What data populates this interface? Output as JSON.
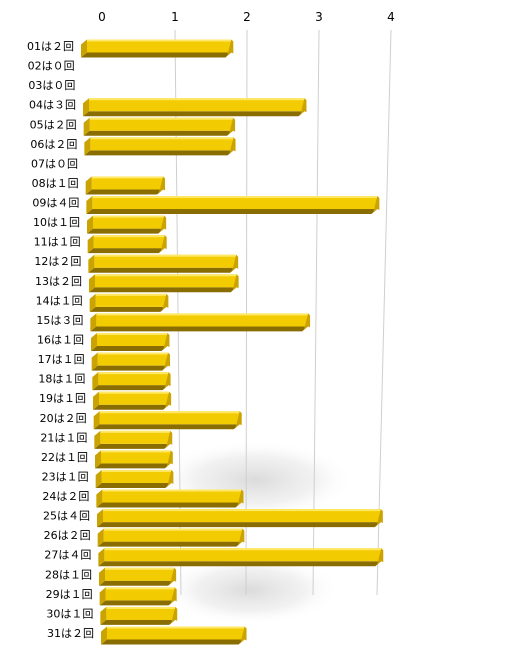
{
  "chart_data": {
    "type": "bar",
    "orientation": "horizontal",
    "style": "3d",
    "grid": true,
    "legend": "none",
    "xlim": [
      0,
      4
    ],
    "x_ticks": [
      "0",
      "1",
      "2",
      "3",
      "4"
    ],
    "categories": [
      "01は２回",
      "02は０回",
      "03は０回",
      "04は３回",
      "05は２回",
      "06は２回",
      "07は０回",
      "08は１回",
      "09は４回",
      "10は１回",
      "11は１回",
      "12は２回",
      "13は２回",
      "14は１回",
      "15は３回",
      "16は１回",
      "17は１回",
      "18は１回",
      "19は１回",
      "20は２回",
      "21は１回",
      "22は１回",
      "23は１回",
      "24は２回",
      "25は４回",
      "26は２回",
      "27は４回",
      "28は１回",
      "29は１回",
      "30は１回",
      "31は２回"
    ],
    "values": [
      2,
      0,
      0,
      3,
      2,
      2,
      0,
      1,
      4,
      1,
      1,
      2,
      2,
      1,
      3,
      1,
      1,
      1,
      1,
      2,
      1,
      1,
      1,
      2,
      4,
      2,
      4,
      1,
      1,
      1,
      2
    ],
    "colors": {
      "bar_face": "#f2cc00",
      "bar_top": "#ffe866",
      "bar_end": "#caa300",
      "bar_bottom": "#8a6d00",
      "grid": "#cfcfcf",
      "text": "#000000"
    }
  }
}
